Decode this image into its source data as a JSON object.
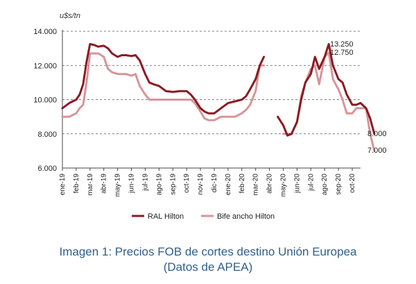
{
  "chart_data": {
    "type": "line",
    "ylabel": "u$s/tn",
    "ylim": [
      6000,
      14000
    ],
    "yticks": [
      "6.000",
      "8.000",
      "10.000",
      "12.000",
      "14.000"
    ],
    "ytick_values": [
      6000,
      8000,
      10000,
      12000,
      14000
    ],
    "grid": "horizontal dashed",
    "categories": [
      "ene-19",
      "feb-19",
      "mar-19",
      "abr-19",
      "may-19",
      "jun-19",
      "jul-19",
      "ago-19",
      "sep-19",
      "oct-19",
      "nov-19",
      "dic-19",
      "ene-20",
      "feb-20",
      "mar-20",
      "abr-20",
      "may-20",
      "jun-20",
      "jul-20",
      "ago-20",
      "sep-20",
      "oct-20"
    ],
    "series": [
      {
        "name": "RAL Hilton",
        "color": "#8b1a22",
        "x": [
          0,
          0.5,
          1,
          1.25,
          1.5,
          1.75,
          2,
          2.3,
          2.6,
          3,
          3.3,
          3.6,
          4,
          4.3,
          4.6,
          5,
          5.3,
          5.6,
          6,
          6.3,
          6.6,
          7,
          7.5,
          8,
          8.5,
          9,
          9.3,
          9.6,
          10,
          10.3,
          10.6,
          11,
          11.5,
          12,
          12.5,
          13,
          13.3,
          13.6,
          14,
          14.3,
          14.6
        ],
        "values": [
          9500,
          9800,
          10000,
          10300,
          10900,
          12200,
          13250,
          13200,
          13100,
          13150,
          13000,
          12700,
          12500,
          12600,
          12600,
          12550,
          12600,
          12300,
          11500,
          11000,
          10900,
          10800,
          10500,
          10450,
          10500,
          10500,
          10300,
          10000,
          9500,
          9300,
          9200,
          9200,
          9500,
          9800,
          9900,
          10000,
          10200,
          10600,
          11200,
          12000,
          12500
        ]
      },
      {
        "name": "RAL Hilton",
        "color": "#8b1a22",
        "x": [
          15.6,
          16,
          16.3,
          16.6,
          17,
          17.3,
          17.6,
          18,
          18.3,
          18.6,
          19,
          19.3,
          19.6,
          20,
          20.3,
          20.6,
          21,
          21.3,
          21.6,
          22,
          22.3,
          22.6
        ],
        "values": [
          9000,
          8500,
          7900,
          8000,
          8700,
          10000,
          11000,
          11500,
          12500,
          11800,
          12500,
          13250,
          12000,
          11200,
          11000,
          10300,
          9700,
          9700,
          9800,
          9500,
          8900,
          8000
        ]
      },
      {
        "name": "Bife ancho Hilton",
        "color": "#d79499",
        "x": [
          0,
          0.5,
          1,
          1.25,
          1.5,
          1.75,
          2,
          2.3,
          2.6,
          3,
          3.3,
          3.6,
          4,
          4.3,
          4.6,
          5,
          5.3,
          5.6,
          6,
          6.3,
          6.6,
          7,
          7.5,
          8,
          8.5,
          9,
          9.3,
          9.6,
          10,
          10.3,
          10.6,
          11,
          11.5,
          12,
          12.5,
          13,
          13.3,
          13.6,
          14,
          14.3,
          14.6
        ],
        "values": [
          9000,
          9000,
          9200,
          9500,
          9700,
          11000,
          12700,
          12700,
          12700,
          12500,
          11800,
          11600,
          11500,
          11500,
          11500,
          11400,
          11500,
          10800,
          10300,
          10000,
          10000,
          10000,
          10000,
          10000,
          10000,
          10000,
          10000,
          9800,
          9300,
          8900,
          8800,
          8800,
          9000,
          9000,
          9000,
          9200,
          9400,
          9700,
          10500,
          12000,
          12000
        ]
      },
      {
        "name": "Bife ancho Hilton",
        "color": "#d79499",
        "x": [
          16,
          16.3,
          16.6,
          17,
          17.3,
          17.6,
          18,
          18.3,
          18.6,
          19,
          19.3,
          19.6,
          20,
          20.3,
          20.6,
          21,
          21.3,
          21.6,
          22,
          22.3,
          22.6
        ],
        "values": [
          8000,
          8000,
          8000,
          8700,
          10200,
          11000,
          11800,
          12000,
          10900,
          12500,
          12750,
          11200,
          10600,
          10000,
          9200,
          9200,
          9500,
          9500,
          9500,
          8000,
          7000
        ]
      }
    ],
    "annotations": [
      {
        "text": "13.250",
        "value": 13250
      },
      {
        "text": "12.750",
        "value": 12750
      },
      {
        "text": "8.000",
        "value": 8000
      },
      {
        "text": "7.000",
        "value": 7000
      }
    ],
    "legend": {
      "position": "bottom",
      "entries": [
        {
          "name": "RAL Hilton",
          "color": "#8b1a22"
        },
        {
          "name": "Bife ancho Hilton",
          "color": "#d79499"
        }
      ]
    }
  },
  "caption": {
    "line1": "Imagen 1: Precios FOB de cortes destino Unión Europea",
    "line2": "(Datos de APEA)"
  }
}
